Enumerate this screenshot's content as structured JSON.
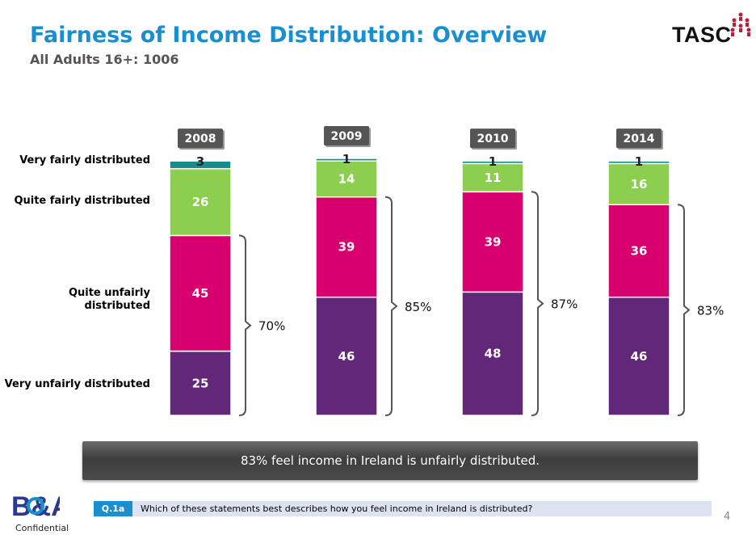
{
  "header": {
    "title": "Fairness of Income Distribution: Overview",
    "subtitle": "All Adults 16+: 1006",
    "logo_text": "TASC"
  },
  "chart_data": {
    "type": "stacked-bar",
    "categories": [
      "2008",
      "2009",
      "2010",
      "2014"
    ],
    "series": [
      {
        "name": "Very unfairly distributed",
        "color": "#622778",
        "values": [
          25,
          46,
          48,
          46
        ]
      },
      {
        "name": "Quite unfairly distributed",
        "color": "#d8006e",
        "values": [
          45,
          39,
          39,
          36
        ]
      },
      {
        "name": "Quite fairly distributed",
        "color": "#8ccf4f",
        "values": [
          26,
          14,
          11,
          16
        ]
      },
      {
        "name": "Very fairly distributed",
        "color": "#1b8a8a",
        "values": [
          3,
          1,
          1,
          1
        ]
      }
    ],
    "unfair_totals": [
      "70%",
      "85%",
      "87%",
      "83%"
    ],
    "ylim": [
      0,
      100
    ]
  },
  "labels": {
    "very_fairly": "Very fairly distributed",
    "quite_fairly": "Quite fairly distributed",
    "quite_unfairly": "Quite unfairly distributed",
    "very_unfairly": "Very unfairly distributed"
  },
  "banner": {
    "text": "83% feel income in Ireland is unfairly distributed."
  },
  "footer": {
    "question_id": "Q.1a",
    "question_text": "Which of these statements best describes how you feel income in Ireland is distributed?",
    "page_number": "4",
    "confidential": "Confidential",
    "company_logo": "B&A"
  }
}
